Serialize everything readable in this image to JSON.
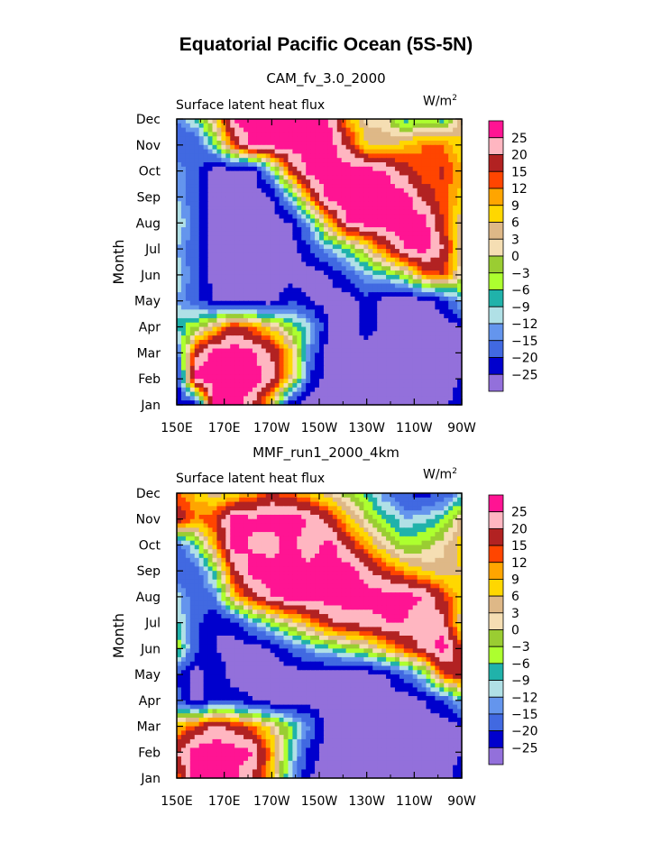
{
  "title": "Equatorial Pacific Ocean (5S-5N)",
  "panels": [
    {
      "subtitle": "CAM_fv_3.0_2000",
      "left_label": "Surface latent heat flux",
      "units": "W/m",
      "units_sup": "2",
      "ylabel": "Month"
    },
    {
      "subtitle": "MMF_run1_2000_4km",
      "left_label": "Surface latent heat flux",
      "units": "W/m",
      "units_sup": "2",
      "ylabel": "Month"
    }
  ],
  "chart_data": [
    {
      "type": "heatmap",
      "title": "CAM_fv_3.0_2000",
      "variable": "Surface latent heat flux",
      "units": "W/m2",
      "ylabel": "Month",
      "x_ticks": [
        "150E",
        "170E",
        "170W",
        "150W",
        "130W",
        "110W",
        "90W"
      ],
      "y_ticks": [
        "Jan",
        "Feb",
        "Mar",
        "Apr",
        "May",
        "Jun",
        "Jul",
        "Aug",
        "Sep",
        "Oct",
        "Nov",
        "Dec"
      ],
      "legend_levels": [
        "25",
        "20",
        "15",
        "12",
        "9",
        "6",
        "3",
        "0",
        "-3",
        "-6",
        "-9",
        "-12",
        "-15",
        "-20",
        "-25"
      ],
      "legend_colors": [
        "#ff1493",
        "#ffb6c1",
        "#b22222",
        "#ff4500",
        "#ffa500",
        "#ffd700",
        "#deb887",
        "#f5deb3",
        "#9acd32",
        "#adff2f",
        "#20b2aa",
        "#b0e0e6",
        "#6495ed",
        "#4169e1",
        "#0000cd",
        "#9370db"
      ],
      "values": [
        [
          -22,
          -25,
          28,
          28,
          20,
          5,
          -25,
          -28,
          -28,
          -28,
          -28,
          -28,
          -28,
          -28,
          -28,
          -20
        ],
        [
          -25,
          28,
          28,
          28,
          28,
          22,
          5,
          -20,
          -28,
          -28,
          -28,
          -28,
          -28,
          -28,
          -28,
          -25
        ],
        [
          -18,
          18,
          28,
          28,
          26,
          20,
          8,
          -15,
          -28,
          -28,
          -28,
          -28,
          -28,
          -28,
          -28,
          -25
        ],
        [
          -8,
          -3,
          6,
          18,
          12,
          5,
          -4,
          -10,
          -25,
          -28,
          -22,
          -28,
          -28,
          -28,
          -28,
          -25
        ],
        [
          -12,
          -18,
          -25,
          -28,
          -28,
          -28,
          -20,
          -25,
          -28,
          -28,
          -22,
          -28,
          -28,
          -28,
          -22,
          -10
        ],
        [
          -10,
          -18,
          -28,
          -28,
          -28,
          -28,
          -28,
          -28,
          -25,
          -18,
          -12,
          -8,
          -2,
          12,
          15,
          0
        ],
        [
          -12,
          -18,
          -28,
          -28,
          -28,
          -28,
          -28,
          -20,
          -12,
          -6,
          3,
          15,
          25,
          28,
          20,
          3
        ],
        [
          -8,
          -18,
          -28,
          -28,
          -28,
          -28,
          -25,
          -12,
          8,
          25,
          28,
          28,
          28,
          28,
          15,
          3
        ],
        [
          -12,
          -18,
          -28,
          -28,
          -28,
          -25,
          -10,
          12,
          28,
          28,
          28,
          28,
          28,
          18,
          13,
          8
        ],
        [
          -12,
          -18,
          -28,
          -28,
          -28,
          -10,
          15,
          28,
          28,
          28,
          28,
          25,
          18,
          12,
          16,
          9
        ],
        [
          -18,
          -20,
          -6,
          15,
          28,
          28,
          28,
          28,
          28,
          18,
          6,
          5,
          8,
          12,
          12,
          6
        ],
        [
          -15,
          -8,
          5,
          26,
          28,
          28,
          28,
          28,
          25,
          10,
          2,
          1,
          -8,
          -5,
          -8,
          6
        ]
      ]
    },
    {
      "type": "heatmap",
      "title": "MMF_run1_2000_4km",
      "variable": "Surface latent heat flux",
      "units": "W/m2",
      "ylabel": "Month",
      "x_ticks": [
        "150E",
        "170E",
        "170W",
        "150W",
        "130W",
        "110W",
        "90W"
      ],
      "y_ticks": [
        "Jan",
        "Feb",
        "Mar",
        "Apr",
        "May",
        "Jun",
        "Jul",
        "Aug",
        "Sep",
        "Oct",
        "Nov",
        "Dec"
      ],
      "legend_levels": [
        "25",
        "20",
        "15",
        "12",
        "9",
        "6",
        "3",
        "0",
        "-3",
        "-6",
        "-9",
        "-12",
        "-15",
        "-20",
        "-25"
      ],
      "legend_colors": [
        "#ff1493",
        "#ffb6c1",
        "#b22222",
        "#ff4500",
        "#ffa500",
        "#ffd700",
        "#deb887",
        "#f5deb3",
        "#9acd32",
        "#adff2f",
        "#20b2aa",
        "#b0e0e6",
        "#6495ed",
        "#4169e1",
        "#0000cd",
        "#9370db"
      ],
      "values": [
        [
          12,
          28,
          28,
          26,
          20,
          8,
          -12,
          -25,
          -28,
          -28,
          -28,
          -28,
          -28,
          -28,
          -28,
          -22
        ],
        [
          20,
          28,
          28,
          28,
          25,
          10,
          -8,
          -22,
          -28,
          -28,
          -28,
          -28,
          -28,
          -28,
          -28,
          -25
        ],
        [
          8,
          15,
          22,
          18,
          12,
          4,
          -5,
          -15,
          -28,
          -28,
          -28,
          -28,
          -28,
          -28,
          -28,
          -25
        ],
        [
          -18,
          -28,
          -20,
          -22,
          -25,
          -28,
          -28,
          -28,
          -28,
          -28,
          -28,
          -28,
          -28,
          -25,
          -20,
          -10
        ],
        [
          -20,
          -28,
          -20,
          -28,
          -28,
          -28,
          -28,
          -28,
          -28,
          -28,
          -28,
          -25,
          -18,
          -8,
          15,
          20
        ],
        [
          -3,
          -18,
          -25,
          -28,
          -28,
          -25,
          -18,
          -12,
          -8,
          -4,
          0,
          8,
          15,
          22,
          28,
          15
        ],
        [
          -8,
          -18,
          -25,
          -22,
          -12,
          -4,
          3,
          10,
          18,
          22,
          22,
          25,
          25,
          20,
          22,
          3
        ],
        [
          -10,
          -18,
          -15,
          8,
          18,
          25,
          28,
          28,
          28,
          28,
          28,
          28,
          28,
          25,
          16,
          6
        ],
        [
          -20,
          -18,
          -6,
          18,
          28,
          28,
          28,
          28,
          28,
          28,
          22,
          15,
          10,
          6,
          4,
          6
        ],
        [
          -18,
          -8,
          10,
          28,
          24,
          22,
          28,
          20,
          28,
          18,
          10,
          2,
          -4,
          -2,
          2,
          8
        ],
        [
          20,
          12,
          15,
          28,
          26,
          28,
          28,
          25,
          18,
          8,
          0,
          -6,
          -12,
          -10,
          -6,
          4
        ],
        [
          12,
          8,
          4,
          6,
          10,
          15,
          12,
          8,
          3,
          -2,
          -8,
          -15,
          -20,
          -22,
          -20,
          -12
        ]
      ]
    }
  ],
  "colors": {
    "frame": "#000000",
    "background": "#ffffff"
  }
}
